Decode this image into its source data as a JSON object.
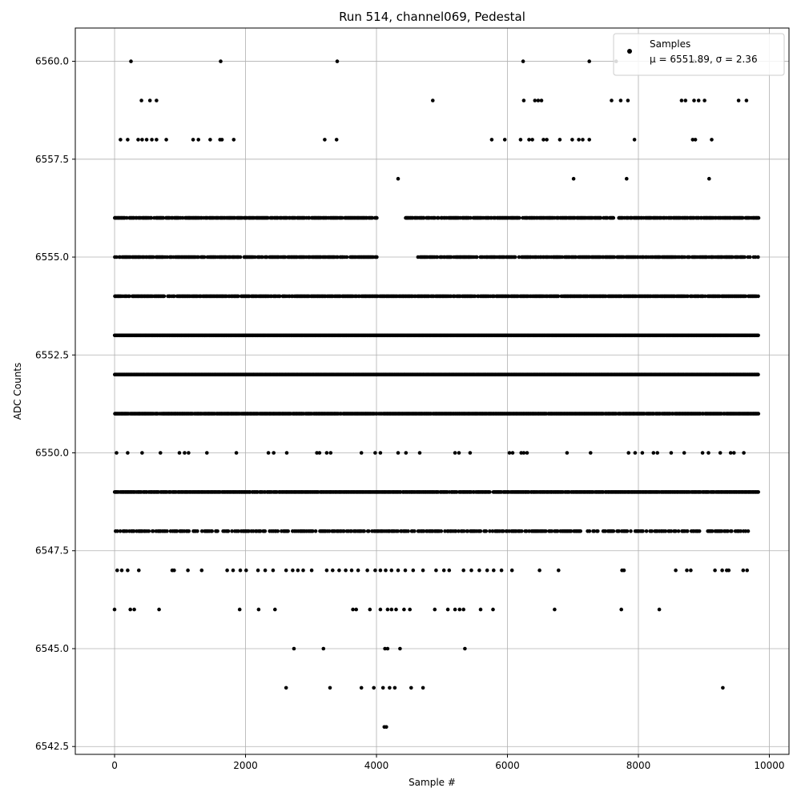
{
  "chart_data": {
    "type": "scatter",
    "title": "Run 514, channel069, Pedestal",
    "xlabel": "Sample #",
    "ylabel": "ADC Counts",
    "xlim": [
      -600,
      10300
    ],
    "ylim": [
      6542.3,
      6560.85
    ],
    "xticks": [
      0,
      2000,
      4000,
      6000,
      8000,
      10000
    ],
    "xtick_labels": [
      "0",
      "2000",
      "4000",
      "6000",
      "8000",
      "10000"
    ],
    "yticks": [
      6542.5,
      6545.0,
      6547.5,
      6550.0,
      6552.5,
      6555.0,
      6557.5,
      6560.0
    ],
    "ytick_labels": [
      "6542.5",
      "6545.0",
      "6547.5",
      "6550.0",
      "6552.5",
      "6555.0",
      "6557.5",
      "6560.0"
    ],
    "grid": true,
    "legend": {
      "placement": "top-right",
      "entries": [
        "Samples",
        "μ = 6551.89, σ = 2.36"
      ]
    },
    "marker_color": "#000000",
    "series": [
      {
        "name": "Samples",
        "x_range": [
          0,
          9830
        ],
        "n_samples": 9830,
        "levels": [
          {
            "y": 6556,
            "segments": [
              [
                0,
                4010
              ],
              [
                4440,
                9830
              ]
            ],
            "density": 0.8
          },
          {
            "y": 6555,
            "segments": [
              [
                0,
                4010
              ],
              [
                4620,
                9830
              ]
            ],
            "density": 0.8
          },
          {
            "y": 6554,
            "segments": [
              [
                0,
                9830
              ]
            ],
            "density": 0.9
          },
          {
            "y": 6553,
            "segments": [
              [
                0,
                9830
              ]
            ],
            "density": 1.0
          },
          {
            "y": 6552,
            "segments": [
              [
                0,
                9830
              ]
            ],
            "density": 1.0
          },
          {
            "y": 6551,
            "segments": [
              [
                0,
                9830
              ]
            ],
            "density": 0.95
          },
          {
            "y": 6549,
            "segments": [
              [
                0,
                9830
              ]
            ],
            "density": 0.95
          },
          {
            "y": 6548,
            "segments": [
              [
                0,
                9690
              ]
            ],
            "density": 0.55
          }
        ],
        "points": [
          {
            "x": 250,
            "y": 6560
          },
          {
            "x": 1620,
            "y": 6560
          },
          {
            "x": 3400,
            "y": 6560
          },
          {
            "x": 6240,
            "y": 6560
          },
          {
            "x": 7250,
            "y": 6560
          },
          {
            "x": 7660,
            "y": 6560
          },
          {
            "x": 8850,
            "y": 6560
          },
          {
            "x": 8950,
            "y": 6560
          },
          {
            "x": 410,
            "y": 6559
          },
          {
            "x": 540,
            "y": 6559
          },
          {
            "x": 640,
            "y": 6559
          },
          {
            "x": 4860,
            "y": 6559
          },
          {
            "x": 6250,
            "y": 6559
          },
          {
            "x": 6420,
            "y": 6559
          },
          {
            "x": 6470,
            "y": 6559
          },
          {
            "x": 6520,
            "y": 6559
          },
          {
            "x": 7590,
            "y": 6559
          },
          {
            "x": 7730,
            "y": 6559
          },
          {
            "x": 7840,
            "y": 6559
          },
          {
            "x": 8660,
            "y": 6559
          },
          {
            "x": 8720,
            "y": 6559
          },
          {
            "x": 8850,
            "y": 6559
          },
          {
            "x": 8920,
            "y": 6559
          },
          {
            "x": 9010,
            "y": 6559
          },
          {
            "x": 9530,
            "y": 6559
          },
          {
            "x": 9650,
            "y": 6559
          },
          {
            "x": 90,
            "y": 6558
          },
          {
            "x": 200,
            "y": 6558
          },
          {
            "x": 360,
            "y": 6558
          },
          {
            "x": 420,
            "y": 6558
          },
          {
            "x": 490,
            "y": 6558
          },
          {
            "x": 570,
            "y": 6558
          },
          {
            "x": 640,
            "y": 6558
          },
          {
            "x": 790,
            "y": 6558
          },
          {
            "x": 1200,
            "y": 6558
          },
          {
            "x": 1280,
            "y": 6558
          },
          {
            "x": 1460,
            "y": 6558
          },
          {
            "x": 1610,
            "y": 6558
          },
          {
            "x": 1640,
            "y": 6558
          },
          {
            "x": 1820,
            "y": 6558
          },
          {
            "x": 3210,
            "y": 6558
          },
          {
            "x": 3390,
            "y": 6558
          },
          {
            "x": 5760,
            "y": 6558
          },
          {
            "x": 5960,
            "y": 6558
          },
          {
            "x": 6200,
            "y": 6558
          },
          {
            "x": 6330,
            "y": 6558
          },
          {
            "x": 6380,
            "y": 6558
          },
          {
            "x": 6550,
            "y": 6558
          },
          {
            "x": 6600,
            "y": 6558
          },
          {
            "x": 6800,
            "y": 6558
          },
          {
            "x": 6990,
            "y": 6558
          },
          {
            "x": 7090,
            "y": 6558
          },
          {
            "x": 7150,
            "y": 6558
          },
          {
            "x": 7250,
            "y": 6558
          },
          {
            "x": 7940,
            "y": 6558
          },
          {
            "x": 8830,
            "y": 6558
          },
          {
            "x": 8870,
            "y": 6558
          },
          {
            "x": 9120,
            "y": 6558
          },
          {
            "x": 4330,
            "y": 6557
          },
          {
            "x": 7010,
            "y": 6557
          },
          {
            "x": 7820,
            "y": 6557
          },
          {
            "x": 9080,
            "y": 6557
          },
          {
            "x": 30,
            "y": 6550
          },
          {
            "x": 200,
            "y": 6550
          },
          {
            "x": 420,
            "y": 6550
          },
          {
            "x": 700,
            "y": 6550
          },
          {
            "x": 990,
            "y": 6550
          },
          {
            "x": 1070,
            "y": 6550
          },
          {
            "x": 1130,
            "y": 6550
          },
          {
            "x": 1410,
            "y": 6550
          },
          {
            "x": 1860,
            "y": 6550
          },
          {
            "x": 2350,
            "y": 6550
          },
          {
            "x": 2430,
            "y": 6550
          },
          {
            "x": 2630,
            "y": 6550
          },
          {
            "x": 3090,
            "y": 6550
          },
          {
            "x": 3130,
            "y": 6550
          },
          {
            "x": 3240,
            "y": 6550
          },
          {
            "x": 3300,
            "y": 6550
          },
          {
            "x": 3770,
            "y": 6550
          },
          {
            "x": 3980,
            "y": 6550
          },
          {
            "x": 4060,
            "y": 6550
          },
          {
            "x": 4330,
            "y": 6550
          },
          {
            "x": 4450,
            "y": 6550
          },
          {
            "x": 4660,
            "y": 6550
          },
          {
            "x": 5200,
            "y": 6550
          },
          {
            "x": 5260,
            "y": 6550
          },
          {
            "x": 5430,
            "y": 6550
          },
          {
            "x": 6030,
            "y": 6550
          },
          {
            "x": 6080,
            "y": 6550
          },
          {
            "x": 6210,
            "y": 6550
          },
          {
            "x": 6250,
            "y": 6550
          },
          {
            "x": 6300,
            "y": 6550
          },
          {
            "x": 6910,
            "y": 6550
          },
          {
            "x": 7270,
            "y": 6550
          },
          {
            "x": 7850,
            "y": 6550
          },
          {
            "x": 7950,
            "y": 6550
          },
          {
            "x": 8060,
            "y": 6550
          },
          {
            "x": 8230,
            "y": 6550
          },
          {
            "x": 8290,
            "y": 6550
          },
          {
            "x": 8500,
            "y": 6550
          },
          {
            "x": 8700,
            "y": 6550
          },
          {
            "x": 8980,
            "y": 6550
          },
          {
            "x": 9070,
            "y": 6550
          },
          {
            "x": 9250,
            "y": 6550
          },
          {
            "x": 9410,
            "y": 6550
          },
          {
            "x": 9460,
            "y": 6550
          },
          {
            "x": 9610,
            "y": 6550
          },
          {
            "x": 40,
            "y": 6547
          },
          {
            "x": 110,
            "y": 6547
          },
          {
            "x": 200,
            "y": 6547
          },
          {
            "x": 370,
            "y": 6547
          },
          {
            "x": 880,
            "y": 6547
          },
          {
            "x": 910,
            "y": 6547
          },
          {
            "x": 1120,
            "y": 6547
          },
          {
            "x": 1330,
            "y": 6547
          },
          {
            "x": 1720,
            "y": 6547
          },
          {
            "x": 1810,
            "y": 6547
          },
          {
            "x": 1920,
            "y": 6547
          },
          {
            "x": 2010,
            "y": 6547
          },
          {
            "x": 2190,
            "y": 6547
          },
          {
            "x": 2300,
            "y": 6547
          },
          {
            "x": 2420,
            "y": 6547
          },
          {
            "x": 2620,
            "y": 6547
          },
          {
            "x": 2720,
            "y": 6547
          },
          {
            "x": 2800,
            "y": 6547
          },
          {
            "x": 2880,
            "y": 6547
          },
          {
            "x": 3010,
            "y": 6547
          },
          {
            "x": 3240,
            "y": 6547
          },
          {
            "x": 3330,
            "y": 6547
          },
          {
            "x": 3430,
            "y": 6547
          },
          {
            "x": 3530,
            "y": 6547
          },
          {
            "x": 3620,
            "y": 6547
          },
          {
            "x": 3720,
            "y": 6547
          },
          {
            "x": 3860,
            "y": 6547
          },
          {
            "x": 3980,
            "y": 6547
          },
          {
            "x": 4060,
            "y": 6547
          },
          {
            "x": 4140,
            "y": 6547
          },
          {
            "x": 4230,
            "y": 6547
          },
          {
            "x": 4330,
            "y": 6547
          },
          {
            "x": 4440,
            "y": 6547
          },
          {
            "x": 4560,
            "y": 6547
          },
          {
            "x": 4710,
            "y": 6547
          },
          {
            "x": 4910,
            "y": 6547
          },
          {
            "x": 5030,
            "y": 6547
          },
          {
            "x": 5110,
            "y": 6547
          },
          {
            "x": 5330,
            "y": 6547
          },
          {
            "x": 5450,
            "y": 6547
          },
          {
            "x": 5570,
            "y": 6547
          },
          {
            "x": 5690,
            "y": 6547
          },
          {
            "x": 5790,
            "y": 6547
          },
          {
            "x": 5910,
            "y": 6547
          },
          {
            "x": 6070,
            "y": 6547
          },
          {
            "x": 6490,
            "y": 6547
          },
          {
            "x": 6780,
            "y": 6547
          },
          {
            "x": 7750,
            "y": 6547
          },
          {
            "x": 7780,
            "y": 6547
          },
          {
            "x": 8570,
            "y": 6547
          },
          {
            "x": 8740,
            "y": 6547
          },
          {
            "x": 8800,
            "y": 6547
          },
          {
            "x": 9170,
            "y": 6547
          },
          {
            "x": 9280,
            "y": 6547
          },
          {
            "x": 9350,
            "y": 6547
          },
          {
            "x": 9380,
            "y": 6547
          },
          {
            "x": 9600,
            "y": 6547
          },
          {
            "x": 9660,
            "y": 6547
          },
          {
            "x": 0,
            "y": 6546
          },
          {
            "x": 240,
            "y": 6546
          },
          {
            "x": 300,
            "y": 6546
          },
          {
            "x": 680,
            "y": 6546
          },
          {
            "x": 1910,
            "y": 6546
          },
          {
            "x": 2200,
            "y": 6546
          },
          {
            "x": 2450,
            "y": 6546
          },
          {
            "x": 3640,
            "y": 6546
          },
          {
            "x": 3690,
            "y": 6546
          },
          {
            "x": 3900,
            "y": 6546
          },
          {
            "x": 4060,
            "y": 6546
          },
          {
            "x": 4170,
            "y": 6546
          },
          {
            "x": 4230,
            "y": 6546
          },
          {
            "x": 4300,
            "y": 6546
          },
          {
            "x": 4420,
            "y": 6546
          },
          {
            "x": 4510,
            "y": 6546
          },
          {
            "x": 4890,
            "y": 6546
          },
          {
            "x": 5090,
            "y": 6546
          },
          {
            "x": 5200,
            "y": 6546
          },
          {
            "x": 5270,
            "y": 6546
          },
          {
            "x": 5330,
            "y": 6546
          },
          {
            "x": 5590,
            "y": 6546
          },
          {
            "x": 5780,
            "y": 6546
          },
          {
            "x": 6720,
            "y": 6546
          },
          {
            "x": 7740,
            "y": 6546
          },
          {
            "x": 8320,
            "y": 6546
          },
          {
            "x": 2740,
            "y": 6545
          },
          {
            "x": 3190,
            "y": 6545
          },
          {
            "x": 4130,
            "y": 6545
          },
          {
            "x": 4170,
            "y": 6545
          },
          {
            "x": 4360,
            "y": 6545
          },
          {
            "x": 5350,
            "y": 6545
          },
          {
            "x": 2620,
            "y": 6544
          },
          {
            "x": 3290,
            "y": 6544
          },
          {
            "x": 3770,
            "y": 6544
          },
          {
            "x": 3960,
            "y": 6544
          },
          {
            "x": 4100,
            "y": 6544
          },
          {
            "x": 4200,
            "y": 6544
          },
          {
            "x": 4280,
            "y": 6544
          },
          {
            "x": 4530,
            "y": 6544
          },
          {
            "x": 4710,
            "y": 6544
          },
          {
            "x": 9290,
            "y": 6544
          },
          {
            "x": 4120,
            "y": 6543
          },
          {
            "x": 4150,
            "y": 6543
          }
        ]
      }
    ]
  }
}
